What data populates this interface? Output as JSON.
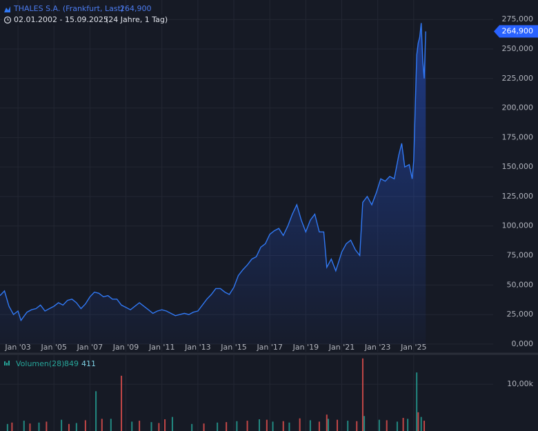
{
  "chart_data": [
    {
      "type": "area",
      "title": "THALES S.A. (Frankfurt, Last)",
      "last": {
        "value": 264900,
        "label": "264,900"
      },
      "subtitle": "02.01.2002 - 15.09.2025",
      "period": "(24 Jahre, 1 Tag)",
      "color": "#3179f5",
      "x": [
        "2002-01",
        "2002-04",
        "2002-07",
        "2002-10",
        "2003-01",
        "2003-03",
        "2003-07",
        "2003-10",
        "2004-01",
        "2004-04",
        "2004-07",
        "2004-10",
        "2005-01",
        "2005-04",
        "2005-07",
        "2005-10",
        "2006-01",
        "2006-04",
        "2006-07",
        "2006-10",
        "2007-01",
        "2007-04",
        "2007-07",
        "2007-10",
        "2008-01",
        "2008-04",
        "2008-07",
        "2008-10",
        "2009-01",
        "2009-04",
        "2009-07",
        "2009-10",
        "2010-01",
        "2010-04",
        "2010-07",
        "2010-10",
        "2011-01",
        "2011-04",
        "2011-07",
        "2011-10",
        "2012-01",
        "2012-04",
        "2012-07",
        "2012-10",
        "2013-01",
        "2013-04",
        "2013-07",
        "2013-10",
        "2014-01",
        "2014-04",
        "2014-07",
        "2014-10",
        "2015-01",
        "2015-04",
        "2015-07",
        "2015-10",
        "2016-01",
        "2016-04",
        "2016-07",
        "2016-10",
        "2017-01",
        "2017-04",
        "2017-07",
        "2017-10",
        "2018-01",
        "2018-04",
        "2018-07",
        "2018-10",
        "2019-01",
        "2019-04",
        "2019-07",
        "2019-10",
        "2020-01",
        "2020-03",
        "2020-06",
        "2020-09",
        "2020-11",
        "2021-01",
        "2021-04",
        "2021-07",
        "2021-10",
        "2022-01",
        "2022-03",
        "2022-06",
        "2022-09",
        "2022-12",
        "2023-03",
        "2023-06",
        "2023-09",
        "2023-12",
        "2024-03",
        "2024-05",
        "2024-07",
        "2024-10",
        "2024-12",
        "2025-01",
        "2025-02",
        "2025-03",
        "2025-04",
        "2025-05",
        "2025-06",
        "2025-07",
        "2025-08",
        "2025-09"
      ],
      "values": [
        41000,
        45000,
        32000,
        25000,
        28000,
        20000,
        27000,
        29000,
        30000,
        33000,
        28000,
        30000,
        32000,
        35000,
        33000,
        37000,
        38000,
        35000,
        30000,
        34000,
        40000,
        44000,
        43000,
        40000,
        41000,
        38000,
        38000,
        33000,
        31000,
        29000,
        32000,
        35000,
        32000,
        29000,
        26000,
        28000,
        29000,
        28000,
        26000,
        24000,
        25000,
        26000,
        25000,
        27000,
        28000,
        33000,
        38000,
        42000,
        47000,
        47000,
        44000,
        42000,
        48000,
        58000,
        63000,
        67000,
        72000,
        74000,
        82000,
        85000,
        93000,
        96000,
        98000,
        92000,
        100000,
        110000,
        118000,
        105000,
        95000,
        105000,
        110000,
        95000,
        95000,
        65000,
        72000,
        62000,
        70000,
        78000,
        85000,
        88000,
        80000,
        75000,
        120000,
        125000,
        118000,
        128000,
        140000,
        138000,
        142000,
        140000,
        160000,
        170000,
        150000,
        152000,
        140000,
        155000,
        200000,
        245000,
        255000,
        260000,
        272000,
        240000,
        225000,
        264900
      ],
      "xlim": [
        "2002-01",
        "2029-06"
      ],
      "xticks": [
        {
          "value": "2003-01",
          "label": "Jan '03"
        },
        {
          "value": "2005-01",
          "label": "Jan '05"
        },
        {
          "value": "2007-01",
          "label": "Jan '07"
        },
        {
          "value": "2009-01",
          "label": "Jan '09"
        },
        {
          "value": "2011-01",
          "label": "Jan '11"
        },
        {
          "value": "2013-01",
          "label": "Jan '13"
        },
        {
          "value": "2015-01",
          "label": "Jan '15"
        },
        {
          "value": "2017-01",
          "label": "Jan '17"
        },
        {
          "value": "2019-01",
          "label": "Jan '19"
        },
        {
          "value": "2021-01",
          "label": "Jan '21"
        },
        {
          "value": "2023-01",
          "label": "Jan '23"
        },
        {
          "value": "2025-01",
          "label": "Jan '25"
        }
      ],
      "ylim": [
        -6500,
        291500
      ],
      "yticks": [
        {
          "value": 0,
          "label": "0,000"
        },
        {
          "value": 25000,
          "label": "25,000"
        },
        {
          "value": 50000,
          "label": "50,000"
        },
        {
          "value": 75000,
          "label": "75,000"
        },
        {
          "value": 100000,
          "label": "100,000"
        },
        {
          "value": 125000,
          "label": "125,000"
        },
        {
          "value": 150000,
          "label": "150,000"
        },
        {
          "value": 175000,
          "label": "175,000"
        },
        {
          "value": 200000,
          "label": "200,000"
        },
        {
          "value": 225000,
          "label": "225,000"
        },
        {
          "value": 250000,
          "label": "250,000"
        },
        {
          "value": 275000,
          "label": "275,000"
        }
      ],
      "grid": true
    },
    {
      "type": "bar",
      "title": "Volumen(28)",
      "last_value": 849,
      "ma_value": 411,
      "xlim": [
        "2002-01",
        "2029-06"
      ],
      "ylim": [
        0,
        16200
      ],
      "yticks": [
        {
          "value": 10000,
          "label": "10,00k"
        }
      ],
      "grid": true,
      "series": [
        {
          "color": "#26a69a",
          "x": [
            "2002-06",
            "2003-05",
            "2004-03",
            "2005-06",
            "2006-04",
            "2007-05",
            "2008-03",
            "2009-05",
            "2010-06",
            "2011-08",
            "2012-09",
            "2014-02",
            "2015-03",
            "2016-06",
            "2017-03",
            "2018-02",
            "2019-04",
            "2020-04",
            "2021-05",
            "2022-04",
            "2023-02",
            "2024-02",
            "2024-09",
            "2025-03",
            "2025-06"
          ],
          "values": [
            1500,
            2200,
            1800,
            2400,
            1700,
            8500,
            2600,
            2000,
            1900,
            3000,
            1500,
            1800,
            2100,
            2500,
            2000,
            1800,
            2300,
            2600,
            2200,
            3200,
            2400,
            2000,
            2600,
            12500,
            3000
          ]
        },
        {
          "color": "#ef5350",
          "x": [
            "2002-09",
            "2003-09",
            "2004-08",
            "2005-11",
            "2006-10",
            "2007-09",
            "2008-10",
            "2009-10",
            "2010-11",
            "2011-03",
            "2013-05",
            "2014-08",
            "2015-10",
            "2016-11",
            "2017-10",
            "2018-09",
            "2019-10",
            "2020-03",
            "2020-10",
            "2021-11",
            "2022-03",
            "2023-07",
            "2024-06",
            "2025-04",
            "2025-08"
          ],
          "values": [
            1800,
            1600,
            2000,
            1500,
            2300,
            2600,
            11800,
            2200,
            1700,
            2500,
            1600,
            1900,
            2200,
            2400,
            2100,
            2700,
            2000,
            3500,
            2400,
            2100,
            15500,
            2300,
            2800,
            4000,
            2200
          ]
        }
      ]
    }
  ]
}
